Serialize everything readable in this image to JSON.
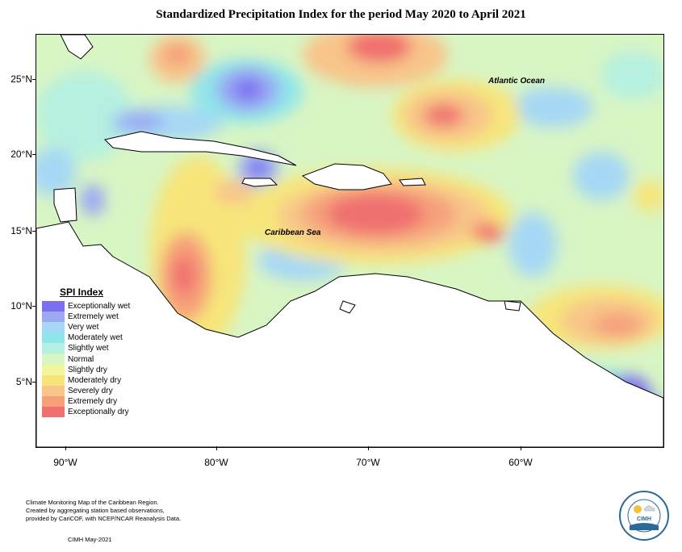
{
  "title": "Standardized Precipitation Index for the period May 2020 to April 2021",
  "map": {
    "labels": {
      "atlantic": "Atlantic Ocean",
      "caribbean": "Caribbean Sea"
    },
    "y_ticks": [
      "25°N",
      "20°N",
      "15°N",
      "10°N",
      "5°N"
    ],
    "x_ticks": [
      "90°W",
      "80°W",
      "70°W",
      "60°W"
    ],
    "extent": {
      "lon_range": [
        -92,
        -51
      ],
      "lat_range": [
        1,
        28
      ]
    }
  },
  "legend": {
    "title": "SPI Index",
    "items": [
      {
        "label": "Exceptionally wet",
        "color": "#7b6ff0"
      },
      {
        "label": "Extremely wet",
        "color": "#9aa9f2"
      },
      {
        "label": "Very wet",
        "color": "#a6d8f5"
      },
      {
        "label": "Moderately wet",
        "color": "#8fe6ea"
      },
      {
        "label": "Slightly wet",
        "color": "#b6f0e0"
      },
      {
        "label": "Normal",
        "color": "#d8f5c4"
      },
      {
        "label": "Slightly dry",
        "color": "#f2f59c"
      },
      {
        "label": "Moderately dry",
        "color": "#f7e57a"
      },
      {
        "label": "Severely dry",
        "color": "#f8c58a"
      },
      {
        "label": "Extremely dry",
        "color": "#f6a07a"
      },
      {
        "label": "Exceptionally dry",
        "color": "#f07070"
      }
    ]
  },
  "footer": {
    "line1": "Climate Monitoring Map of the Caribbean Region.",
    "line2": "Created by aggregating station based observations,",
    "line3": "provided by CariCOF, with NCEP/NCAR Reanalysis Data.",
    "date": "CIMH May-2021"
  },
  "logo": {
    "text": "CIMH",
    "icon": "cimh-logo-icon"
  }
}
